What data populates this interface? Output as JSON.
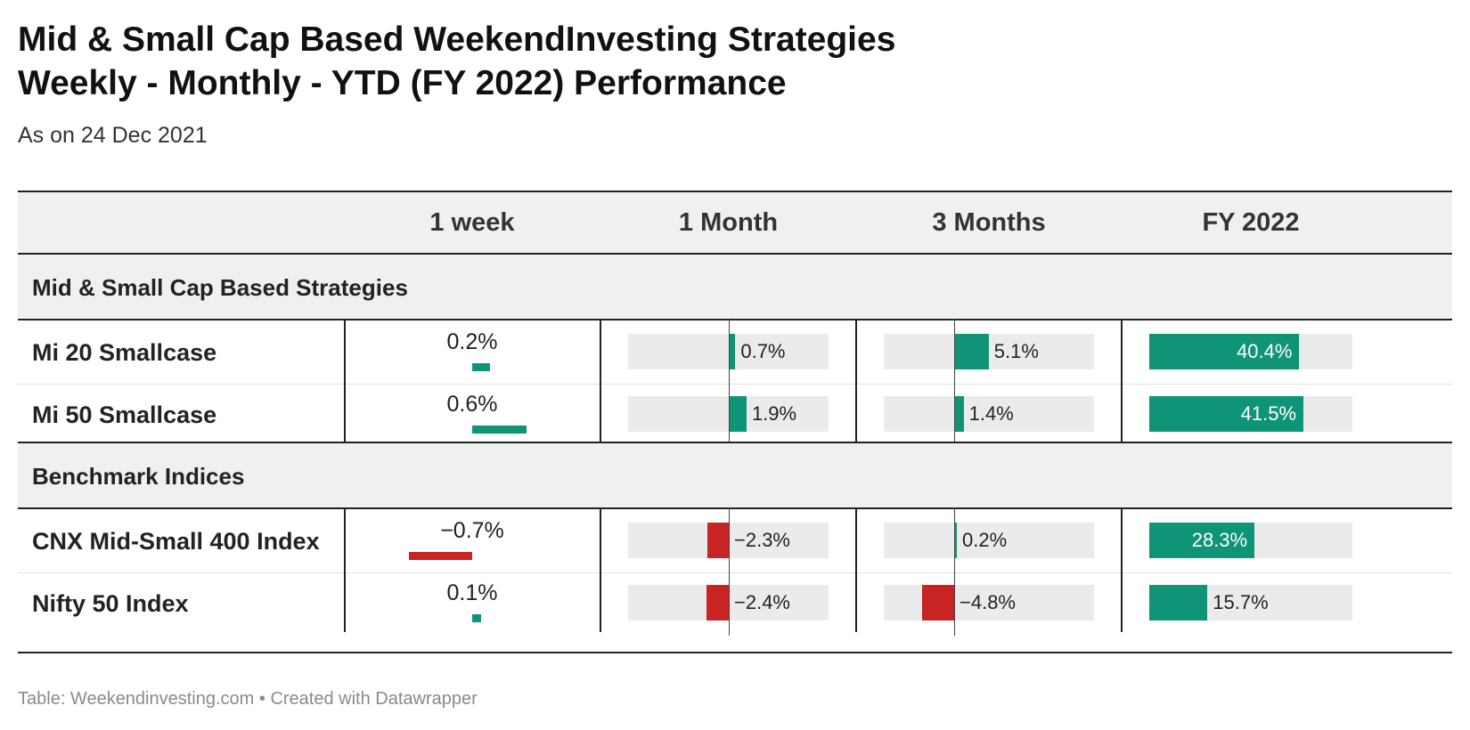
{
  "title_line1": "Mid & Small Cap Based WeekendInvesting Strategies",
  "title_line2": "Weekly - Monthly - YTD (FY 2022) Performance",
  "subtitle": "As on 24 Dec 2021",
  "footer": "Table: Weekendinvesting.com • Created with Datawrapper",
  "colors": {
    "positive": "#0f9478",
    "negative": "#c92424",
    "track": "#ebebeb"
  },
  "chart_data": {
    "type": "table",
    "columns": [
      "",
      "1 week",
      "1 Month",
      "3 Months",
      "FY 2022"
    ],
    "groups": [
      {
        "label": "Mid & Small Cap Based Strategies",
        "rows": [
          {
            "name": "Mi 20 Smallcase",
            "week": 0.2,
            "month": 0.7,
            "three_months": 5.1,
            "fy": 40.4,
            "week_label": "0.2%",
            "month_label": "0.7%",
            "three_months_label": "5.1%",
            "fy_label": "40.4%"
          },
          {
            "name": "Mi 50 Smallcase",
            "week": 0.6,
            "month": 1.9,
            "three_months": 1.4,
            "fy": 41.5,
            "week_label": "0.6%",
            "month_label": "1.9%",
            "three_months_label": "1.4%",
            "fy_label": "41.5%"
          }
        ]
      },
      {
        "label": "Benchmark Indices",
        "rows": [
          {
            "name": "CNX Mid-Small 400 Index",
            "week": -0.7,
            "month": -2.3,
            "three_months": 0.2,
            "fy": 28.3,
            "week_label": "−0.7%",
            "month_label": "−2.3%",
            "three_months_label": "0.2%",
            "fy_label": "28.3%"
          },
          {
            "name": "Nifty 50 Index",
            "week": 0.1,
            "month": -2.4,
            "three_months": -4.8,
            "fy": 15.7,
            "week_label": "0.1%",
            "month_label": "−2.4%",
            "three_months_label": "−4.8%",
            "fy_label": "15.7%"
          }
        ]
      }
    ]
  }
}
